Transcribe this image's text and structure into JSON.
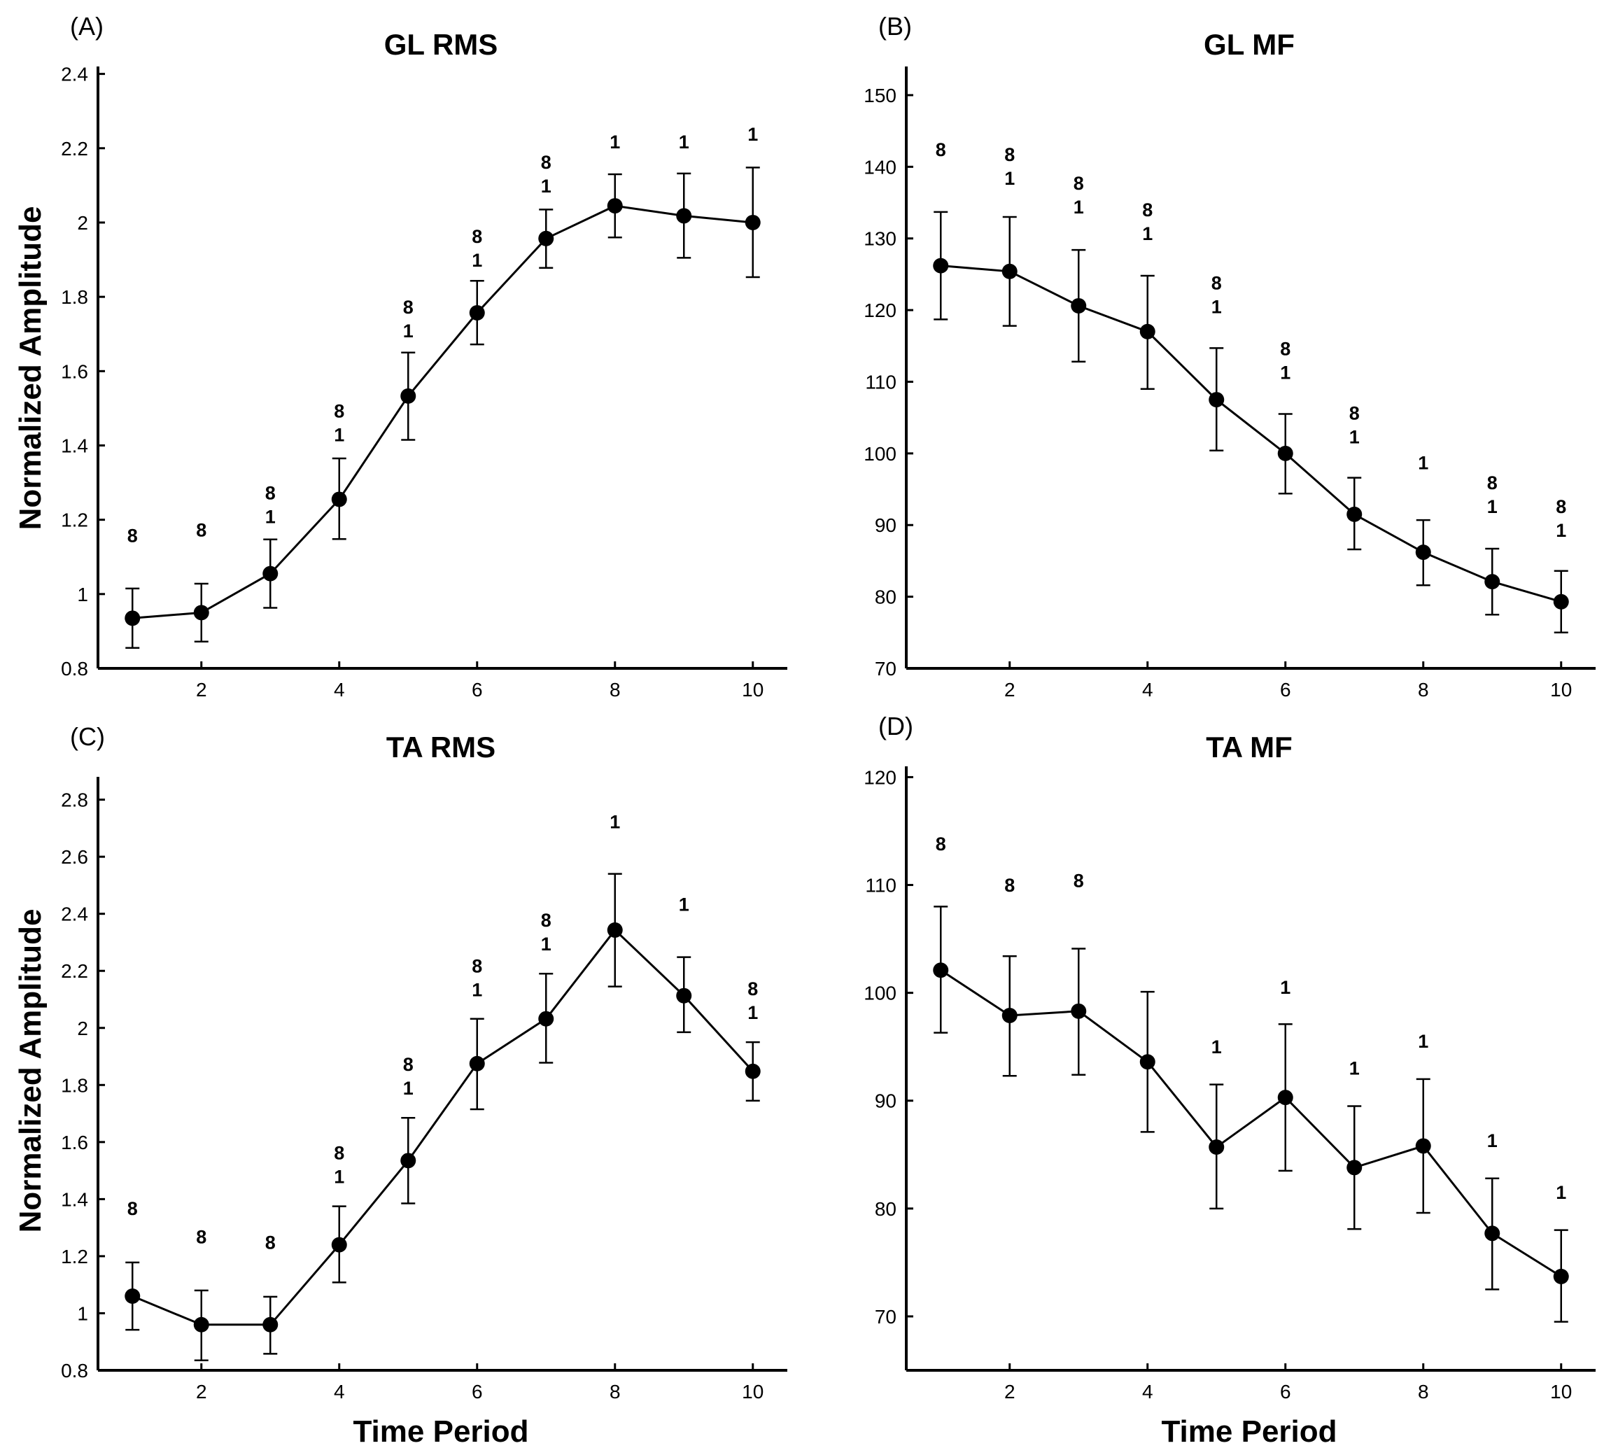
{
  "figure": {
    "ylabel": "Normalized Amplitude",
    "xlabel": "Time Period"
  },
  "chart_data": [
    {
      "panel": "(A)",
      "type": "line",
      "title": "GL RMS",
      "xlabel": "",
      "ylabel": "Normalized Amplitude",
      "xlim": [
        0.5,
        10.5
      ],
      "ylim": [
        0.8,
        2.42
      ],
      "xticks": [
        2,
        4,
        6,
        8,
        10
      ],
      "xtick_labels": [
        "2",
        "4",
        "6",
        "8",
        "10"
      ],
      "yticks": [
        0.8,
        1,
        1.2,
        1.4,
        1.6,
        1.8,
        2,
        2.2,
        2.4
      ],
      "ytick_labels": [
        "0.8",
        "1",
        "1.2",
        "1.4",
        "1.6",
        "1.8",
        "2",
        "2.2",
        "2.4"
      ],
      "x": [
        1,
        2,
        3,
        4,
        5,
        6,
        7,
        8,
        9,
        10
      ],
      "y": [
        0.935,
        0.95,
        1.055,
        1.255,
        1.533,
        1.757,
        1.957,
        2.045,
        2.018,
        2.0
      ],
      "err_low": [
        0.855,
        0.872,
        0.963,
        1.148,
        1.415,
        1.672,
        1.878,
        1.96,
        1.905,
        1.853
      ],
      "err_high": [
        1.015,
        1.028,
        1.147,
        1.365,
        1.65,
        1.843,
        2.035,
        2.13,
        2.132,
        2.148
      ],
      "annotations": [
        {
          "x": 1,
          "y": 1.14,
          "lines": [
            "8"
          ]
        },
        {
          "x": 2,
          "y": 1.155,
          "lines": [
            "8"
          ]
        },
        {
          "x": 3,
          "y": 1.255,
          "lines": [
            "8",
            "1"
          ]
        },
        {
          "x": 4,
          "y": 1.475,
          "lines": [
            "8",
            "1"
          ]
        },
        {
          "x": 5,
          "y": 1.755,
          "lines": [
            "8",
            "1"
          ]
        },
        {
          "x": 6,
          "y": 1.945,
          "lines": [
            "8",
            "1"
          ]
        },
        {
          "x": 7,
          "y": 2.145,
          "lines": [
            "8",
            "1"
          ]
        },
        {
          "x": 8,
          "y": 2.2,
          "lines": [
            "1"
          ]
        },
        {
          "x": 9,
          "y": 2.2,
          "lines": [
            "1"
          ]
        },
        {
          "x": 10,
          "y": 2.22,
          "lines": [
            "1"
          ]
        }
      ]
    },
    {
      "panel": "(B)",
      "type": "line",
      "title": "GL MF",
      "xlabel": "",
      "ylabel": "",
      "xlim": [
        0.5,
        10.5
      ],
      "ylim": [
        70,
        154
      ],
      "xticks": [
        2,
        4,
        6,
        8,
        10
      ],
      "xtick_labels": [
        "2",
        "4",
        "6",
        "8",
        "10"
      ],
      "yticks": [
        70,
        80,
        90,
        100,
        110,
        120,
        130,
        140,
        150
      ],
      "ytick_labels": [
        "70",
        "80",
        "90",
        "100",
        "110",
        "120",
        "130",
        "140",
        "150"
      ],
      "x": [
        1,
        2,
        3,
        4,
        5,
        6,
        7,
        8,
        9,
        10
      ],
      "y": [
        126.2,
        125.4,
        120.6,
        117.0,
        107.5,
        100.0,
        91.5,
        86.2,
        82.1,
        79.3
      ],
      "err_low": [
        118.7,
        117.8,
        112.8,
        109.0,
        100.4,
        94.4,
        86.6,
        81.6,
        77.5,
        75.0
      ],
      "err_high": [
        133.7,
        133.0,
        128.4,
        124.8,
        114.7,
        105.5,
        96.6,
        90.7,
        86.7,
        83.6
      ],
      "annotations": [
        {
          "x": 1,
          "y": 141.5,
          "lines": [
            "8"
          ]
        },
        {
          "x": 2,
          "y": 140.8,
          "lines": [
            "8",
            "1"
          ]
        },
        {
          "x": 3,
          "y": 136.8,
          "lines": [
            "8",
            "1"
          ]
        },
        {
          "x": 4,
          "y": 133.1,
          "lines": [
            "8",
            "1"
          ]
        },
        {
          "x": 5,
          "y": 122.9,
          "lines": [
            "8",
            "1"
          ]
        },
        {
          "x": 6,
          "y": 113.7,
          "lines": [
            "8",
            "1"
          ]
        },
        {
          "x": 7,
          "y": 104.7,
          "lines": [
            "8",
            "1"
          ]
        },
        {
          "x": 8,
          "y": 97.8,
          "lines": [
            "1"
          ]
        },
        {
          "x": 9,
          "y": 95.0,
          "lines": [
            "8",
            "1"
          ]
        },
        {
          "x": 10,
          "y": 91.7,
          "lines": [
            "8",
            "1"
          ]
        }
      ]
    },
    {
      "panel": "(C)",
      "type": "line",
      "title": "TA RMS",
      "xlabel": "Time Period",
      "ylabel": "Normalized Amplitude",
      "xlim": [
        0.5,
        10.5
      ],
      "ylim": [
        0.8,
        2.88
      ],
      "xticks": [
        2,
        4,
        6,
        8,
        10
      ],
      "xtick_labels": [
        "2",
        "4",
        "6",
        "8",
        "10"
      ],
      "yticks": [
        0.8,
        1,
        1.2,
        1.4,
        1.6,
        1.8,
        2,
        2.2,
        2.4,
        2.6,
        2.8
      ],
      "ytick_labels": [
        "0.8",
        "1",
        "1.2",
        "1.4",
        "1.6",
        "1.8",
        "2",
        "2.2",
        "2.4",
        "2.6",
        "2.8"
      ],
      "x": [
        1,
        2,
        3,
        4,
        5,
        6,
        7,
        8,
        9,
        10
      ],
      "y": [
        1.06,
        0.96,
        0.96,
        1.24,
        1.535,
        1.875,
        2.032,
        2.343,
        2.113,
        1.848
      ],
      "err_low": [
        0.942,
        0.835,
        0.858,
        1.108,
        1.385,
        1.715,
        1.878,
        2.145,
        1.985,
        1.745
      ],
      "err_high": [
        1.178,
        1.08,
        1.058,
        1.375,
        1.685,
        2.032,
        2.19,
        2.54,
        2.248,
        1.95
      ],
      "annotations": [
        {
          "x": 1,
          "y": 1.345,
          "lines": [
            "8"
          ]
        },
        {
          "x": 2,
          "y": 1.245,
          "lines": [
            "8"
          ]
        },
        {
          "x": 3,
          "y": 1.225,
          "lines": [
            "8"
          ]
        },
        {
          "x": 4,
          "y": 1.54,
          "lines": [
            "8",
            "1"
          ]
        },
        {
          "x": 5,
          "y": 1.85,
          "lines": [
            "8",
            "1"
          ]
        },
        {
          "x": 6,
          "y": 2.195,
          "lines": [
            "8",
            "1"
          ]
        },
        {
          "x": 7,
          "y": 2.355,
          "lines": [
            "8",
            "1"
          ]
        },
        {
          "x": 8,
          "y": 2.7,
          "lines": [
            "1"
          ]
        },
        {
          "x": 9,
          "y": 2.41,
          "lines": [
            "1"
          ]
        },
        {
          "x": 10,
          "y": 2.115,
          "lines": [
            "8",
            "1"
          ]
        }
      ]
    },
    {
      "panel": "(D)",
      "type": "line",
      "title": "TA MF",
      "xlabel": "Time Period",
      "ylabel": "",
      "xlim": [
        0.5,
        10.5
      ],
      "ylim": [
        65,
        121
      ],
      "xticks": [
        2,
        4,
        6,
        8,
        10
      ],
      "xtick_labels": [
        "2",
        "4",
        "6",
        "8",
        "10"
      ],
      "yticks": [
        70,
        80,
        90,
        100,
        110,
        120
      ],
      "ytick_labels": [
        "70",
        "80",
        "90",
        "100",
        "110",
        "120"
      ],
      "x": [
        1,
        2,
        3,
        4,
        5,
        6,
        7,
        8,
        9,
        10
      ],
      "y": [
        102.1,
        97.9,
        98.3,
        93.6,
        85.7,
        90.3,
        83.8,
        85.8,
        77.7,
        73.7
      ],
      "err_low": [
        96.3,
        92.3,
        92.4,
        87.1,
        80.0,
        83.5,
        78.1,
        79.6,
        72.5,
        69.5
      ],
      "err_high": [
        108.0,
        103.4,
        104.1,
        100.1,
        91.5,
        97.1,
        89.5,
        92.0,
        82.8,
        78.0
      ],
      "annotations": [
        {
          "x": 1,
          "y": 113.2,
          "lines": [
            "8"
          ]
        },
        {
          "x": 2,
          "y": 109.4,
          "lines": [
            "8"
          ]
        },
        {
          "x": 3,
          "y": 109.8,
          "lines": [
            "8"
          ]
        },
        {
          "x": 5,
          "y": 94.4,
          "lines": [
            "1"
          ]
        },
        {
          "x": 6,
          "y": 99.9,
          "lines": [
            "1"
          ]
        },
        {
          "x": 7,
          "y": 92.4,
          "lines": [
            "1"
          ]
        },
        {
          "x": 8,
          "y": 94.9,
          "lines": [
            "1"
          ]
        },
        {
          "x": 9,
          "y": 85.7,
          "lines": [
            "1"
          ]
        },
        {
          "x": 10,
          "y": 80.9,
          "lines": [
            "1"
          ]
        }
      ]
    }
  ]
}
